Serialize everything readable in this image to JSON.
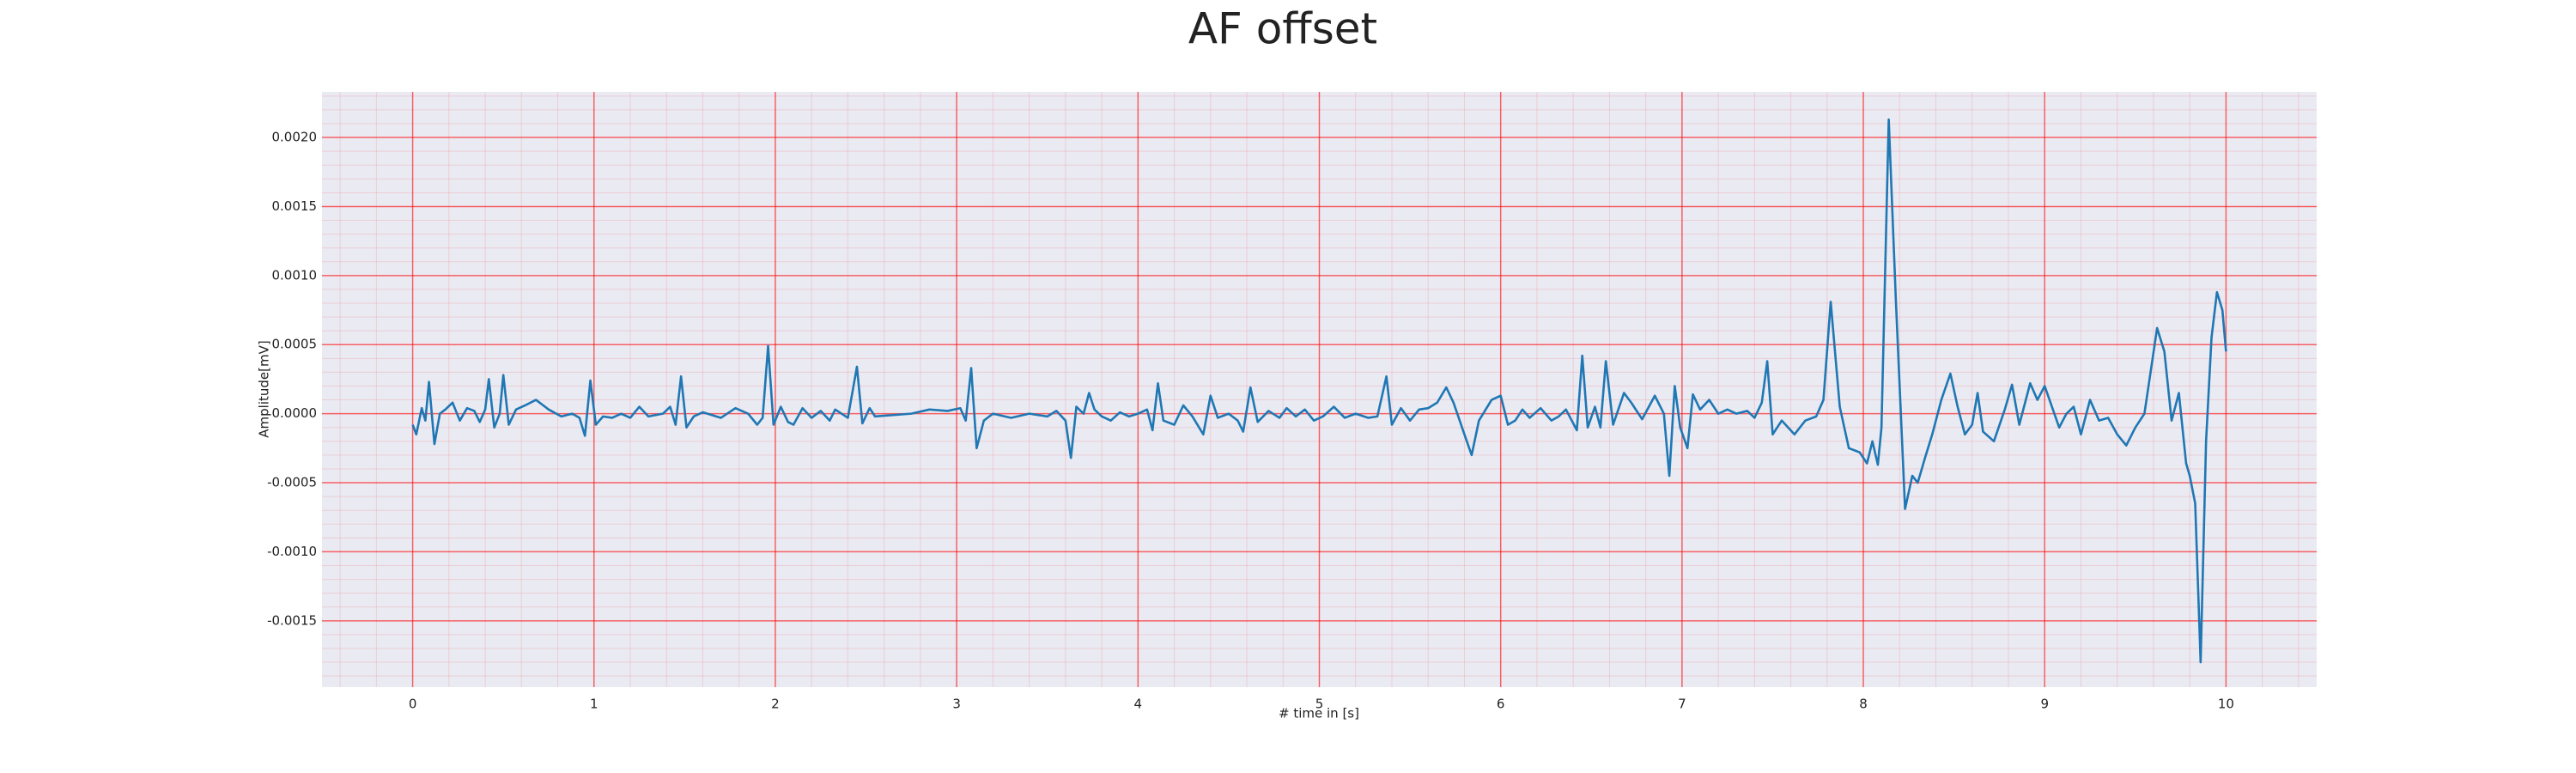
{
  "chart_data": {
    "type": "line",
    "title": "AF offset",
    "x_label": "# time in [s]",
    "y_label": "Amplitude[mV]",
    "xlim": [
      -0.5,
      10.5
    ],
    "xticks": [
      0,
      1,
      2,
      3,
      4,
      5,
      6,
      7,
      8,
      9,
      10
    ],
    "ylim": [
      -0.00198,
      0.00233
    ],
    "yticks": [
      {
        "value": -0.0015,
        "label": "-0.0015"
      },
      {
        "value": -0.001,
        "label": "-0.0010"
      },
      {
        "value": -0.0005,
        "label": "-0.0005"
      },
      {
        "value": 0,
        "label": "0.0000"
      },
      {
        "value": 0.0005,
        "label": "0.0005"
      },
      {
        "value": 0.001,
        "label": "0.0010"
      },
      {
        "value": 0.0015,
        "label": "0.0015"
      },
      {
        "value": 0.002,
        "label": "0.0020"
      }
    ],
    "grid": true,
    "minor_grid": true,
    "background": "#eaeaf2",
    "grid_color": "#ff0000",
    "series": [
      {
        "color": "#1f77b4",
        "x": [
          0.0,
          0.02,
          0.05,
          0.07,
          0.09,
          0.12,
          0.15,
          0.18,
          0.22,
          0.26,
          0.3,
          0.34,
          0.37,
          0.4,
          0.42,
          0.45,
          0.48,
          0.5,
          0.53,
          0.57,
          0.62,
          0.68,
          0.75,
          0.82,
          0.88,
          0.92,
          0.95,
          0.98,
          1.01,
          1.05,
          1.1,
          1.15,
          1.2,
          1.25,
          1.3,
          1.38,
          1.42,
          1.45,
          1.48,
          1.51,
          1.55,
          1.6,
          1.7,
          1.78,
          1.85,
          1.9,
          1.93,
          1.96,
          1.99,
          2.03,
          2.07,
          2.1,
          2.15,
          2.2,
          2.25,
          2.3,
          2.33,
          2.4,
          2.45,
          2.48,
          2.52,
          2.55,
          2.65,
          2.75,
          2.85,
          2.95,
          3.02,
          3.05,
          3.08,
          3.11,
          3.15,
          3.2,
          3.3,
          3.4,
          3.5,
          3.55,
          3.6,
          3.63,
          3.66,
          3.7,
          3.73,
          3.76,
          3.8,
          3.85,
          3.9,
          3.95,
          4.0,
          4.05,
          4.08,
          4.11,
          4.14,
          4.2,
          4.25,
          4.3,
          4.36,
          4.4,
          4.44,
          4.5,
          4.55,
          4.58,
          4.62,
          4.66,
          4.72,
          4.78,
          4.82,
          4.87,
          4.92,
          4.97,
          5.02,
          5.08,
          5.14,
          5.2,
          5.27,
          5.32,
          5.37,
          5.4,
          5.45,
          5.5,
          5.55,
          5.6,
          5.65,
          5.7,
          5.74,
          5.8,
          5.84,
          5.88,
          5.95,
          6.0,
          6.04,
          6.08,
          6.12,
          6.16,
          6.22,
          6.28,
          6.32,
          6.36,
          6.42,
          6.45,
          6.48,
          6.52,
          6.55,
          6.58,
          6.62,
          6.68,
          6.72,
          6.78,
          6.85,
          6.9,
          6.93,
          6.96,
          6.99,
          7.03,
          7.06,
          7.1,
          7.15,
          7.2,
          7.25,
          7.3,
          7.36,
          7.4,
          7.44,
          7.47,
          7.5,
          7.55,
          7.62,
          7.68,
          7.74,
          7.78,
          7.82,
          7.87,
          7.92,
          7.98,
          8.02,
          8.05,
          8.08,
          8.1,
          8.14,
          8.18,
          8.23,
          8.27,
          8.3,
          8.34,
          8.38,
          8.43,
          8.48,
          8.52,
          8.56,
          8.6,
          8.63,
          8.66,
          8.72,
          8.78,
          8.82,
          8.86,
          8.92,
          8.96,
          9.0,
          9.04,
          9.08,
          9.12,
          9.16,
          9.2,
          9.25,
          9.3,
          9.35,
          9.4,
          9.45,
          9.5,
          9.55,
          9.62,
          9.66,
          9.7,
          9.74,
          9.78,
          9.8,
          9.83,
          9.86,
          9.89,
          9.92,
          9.95,
          9.98,
          10.0
        ],
        "values": [
          -8e-05,
          -0.00015,
          4e-05,
          -5e-05,
          0.00023,
          -0.00022,
          0.0,
          3e-05,
          8e-05,
          -5e-05,
          4e-05,
          2e-05,
          -6e-05,
          3e-05,
          0.00025,
          -0.0001,
          0.0,
          0.00028,
          -8e-05,
          3e-05,
          6e-05,
          0.0001,
          3e-05,
          -2e-05,
          0.0,
          -3e-05,
          -0.00016,
          0.00024,
          -8e-05,
          -2e-05,
          -3e-05,
          0.0,
          -3e-05,
          5e-05,
          -2e-05,
          0.0,
          5e-05,
          -8e-05,
          0.00027,
          -0.0001,
          -2e-05,
          1e-05,
          -3e-05,
          4e-05,
          0.0,
          -8e-05,
          -3e-05,
          0.00049,
          -8e-05,
          5e-05,
          -6e-05,
          -8e-05,
          4e-05,
          -3e-05,
          2e-05,
          -5e-05,
          3e-05,
          -3e-05,
          0.00034,
          -7e-05,
          4e-05,
          -2e-05,
          -1e-05,
          0.0,
          3e-05,
          2e-05,
          4e-05,
          -5e-05,
          0.00033,
          -0.00025,
          -5e-05,
          0.0,
          -3e-05,
          0.0,
          -2e-05,
          2e-05,
          -5e-05,
          -0.00032,
          5e-05,
          0.0,
          0.00015,
          3e-05,
          -2e-05,
          -5e-05,
          1e-05,
          -2e-05,
          0.0,
          3e-05,
          -0.00012,
          0.00022,
          -5e-05,
          -8e-05,
          6e-05,
          -2e-05,
          -0.00015,
          0.00013,
          -3e-05,
          0.0,
          -5e-05,
          -0.00013,
          0.00019,
          -6e-05,
          2e-05,
          -3e-05,
          4e-05,
          -2e-05,
          3e-05,
          -5e-05,
          -2e-05,
          5e-05,
          -3e-05,
          0.0,
          -3e-05,
          -2e-05,
          0.00027,
          -8e-05,
          4e-05,
          -5e-05,
          3e-05,
          4e-05,
          8e-05,
          0.00019,
          8e-05,
          -0.00015,
          -0.0003,
          -5e-05,
          0.0001,
          0.00013,
          -8e-05,
          -5e-05,
          3e-05,
          -3e-05,
          4e-05,
          -5e-05,
          -2e-05,
          3e-05,
          -0.00012,
          0.00042,
          -0.0001,
          5e-05,
          -0.0001,
          0.00038,
          -8e-05,
          0.00015,
          8e-05,
          -4e-05,
          0.00013,
          0.0,
          -0.00045,
          0.0002,
          -0.0001,
          -0.00025,
          0.00014,
          3e-05,
          0.0001,
          0.0,
          3e-05,
          0.0,
          2e-05,
          -3e-05,
          8e-05,
          0.00038,
          -0.00015,
          -5e-05,
          -0.00015,
          -5e-05,
          -2e-05,
          0.0001,
          0.00081,
          5e-05,
          -0.00025,
          -0.00028,
          -0.00036,
          -0.0002,
          -0.00037,
          -0.0001,
          0.00213,
          0.0008,
          -0.00069,
          -0.00045,
          -0.0005,
          -0.00032,
          -0.00015,
          0.0001,
          0.00029,
          5e-05,
          -0.00015,
          -8e-05,
          0.00015,
          -0.00013,
          -0.0002,
          3e-05,
          0.00021,
          -8e-05,
          0.00022,
          0.0001,
          0.0002,
          5e-05,
          -0.0001,
          0.0,
          5e-05,
          -0.00015,
          0.0001,
          -5e-05,
          -3e-05,
          -0.00015,
          -0.00023,
          -0.0001,
          0.0,
          0.00062,
          0.00045,
          -5e-05,
          0.00015,
          -0.00036,
          -0.00045,
          -0.00065,
          -0.0018,
          -0.0002,
          0.00055,
          0.00088,
          0.00075,
          0.00045
        ]
      }
    ]
  }
}
